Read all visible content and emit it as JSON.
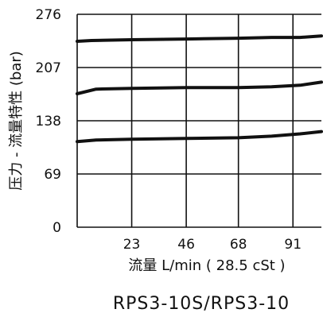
{
  "chart_data": {
    "type": "line",
    "caption": "RPS3-10S/RPS3-10",
    "xlabel": "流量 L/min ( 28.5 cSt )",
    "ylabel": "压力 - 流量特性 (bar)",
    "xlim": [
      0,
      103
    ],
    "ylim": [
      0,
      276
    ],
    "xticks": [
      23,
      46,
      68,
      91
    ],
    "xtick_labels": [
      "23",
      "46",
      "68",
      "91"
    ],
    "yticks": [
      0,
      69,
      138,
      207,
      276
    ],
    "ytick_labels": [
      "0",
      "69",
      "138",
      "207",
      "276"
    ],
    "grid": true,
    "series": [
      {
        "x": [
          0,
          6,
          23,
          46,
          68,
          82,
          94,
          103
        ],
        "y": [
          241,
          242,
          243,
          244,
          245,
          246,
          246,
          248
        ]
      },
      {
        "x": [
          0,
          8,
          23,
          46,
          68,
          82,
          94,
          103
        ],
        "y": [
          173,
          179,
          180,
          181,
          181,
          182,
          184,
          188
        ]
      },
      {
        "x": [
          0,
          8,
          23,
          46,
          68,
          82,
          94,
          103
        ],
        "y": [
          111,
          113,
          114,
          115,
          116,
          118,
          121,
          124
        ]
      }
    ],
    "colors": {
      "line": "#111111",
      "background": "#ffffff"
    }
  }
}
